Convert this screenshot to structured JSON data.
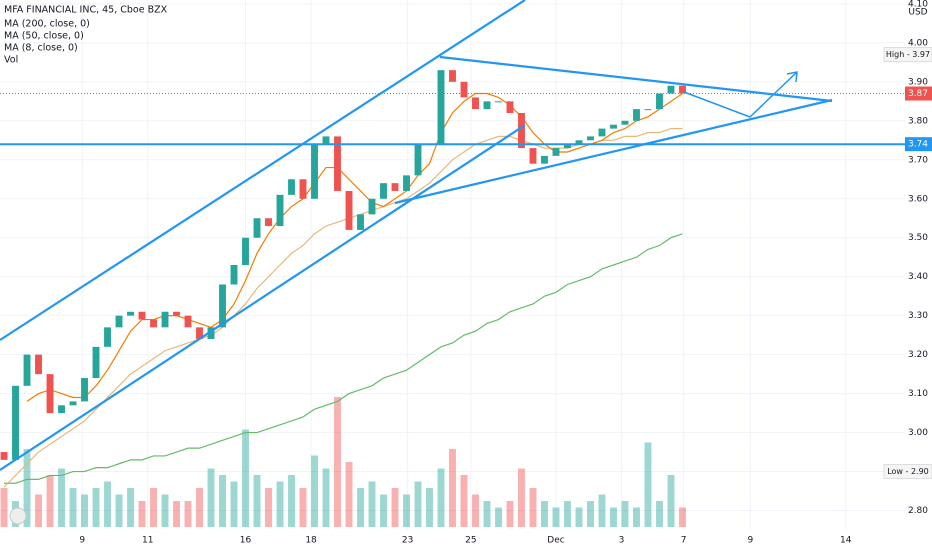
{
  "chart_data": {
    "type": "candlestick",
    "title": "MFA FINANCIAL INC, 45, Cboe BZX",
    "currency": "USD",
    "volume_label": "Vol",
    "up_color": "#26a69a",
    "down_color": "#ef5350",
    "grid": true,
    "x": [
      0,
      1,
      2,
      3,
      4,
      5,
      6,
      7,
      8,
      9,
      10,
      11,
      12,
      13,
      14,
      15,
      16,
      17,
      18,
      19,
      20,
      21,
      22,
      23,
      24,
      25,
      26,
      27,
      28,
      29,
      30,
      31,
      32,
      33,
      34,
      35,
      36,
      37,
      38,
      39,
      40,
      41,
      42,
      43,
      44,
      45,
      46,
      47,
      48,
      49,
      50,
      51,
      52,
      53,
      54,
      55,
      56,
      57,
      58,
      59
    ],
    "open": [
      2.95,
      2.93,
      3.12,
      3.2,
      3.15,
      3.05,
      3.07,
      3.08,
      3.14,
      3.22,
      3.27,
      3.3,
      3.31,
      3.29,
      3.27,
      3.31,
      3.3,
      3.27,
      3.24,
      3.27,
      3.38,
      3.43,
      3.5,
      3.55,
      3.53,
      3.61,
      3.65,
      3.6,
      3.74,
      3.76,
      3.62,
      3.52,
      3.56,
      3.6,
      3.64,
      3.62,
      3.66,
      3.74,
      3.74,
      3.93,
      3.9,
      3.86,
      3.83,
      3.85,
      3.85,
      3.82,
      3.73,
      3.69,
      3.71,
      3.73,
      3.74,
      3.75,
      3.76,
      3.78,
      3.79,
      3.8,
      3.83,
      3.83,
      3.87,
      3.89
    ],
    "high": {
      "value": 3.97,
      "label": "High - 3.97"
    },
    "low": {
      "value": 2.9,
      "label": "Low - 2.90"
    },
    "close": [
      2.93,
      3.12,
      3.2,
      3.15,
      3.05,
      3.07,
      3.08,
      3.14,
      3.22,
      3.27,
      3.3,
      3.31,
      3.29,
      3.27,
      3.31,
      3.3,
      3.27,
      3.24,
      3.27,
      3.38,
      3.43,
      3.5,
      3.55,
      3.53,
      3.61,
      3.65,
      3.6,
      3.74,
      3.76,
      3.62,
      3.52,
      3.56,
      3.6,
      3.64,
      3.62,
      3.66,
      3.74,
      3.74,
      3.93,
      3.9,
      3.86,
      3.83,
      3.85,
      3.85,
      3.82,
      3.73,
      3.69,
      3.71,
      3.73,
      3.74,
      3.75,
      3.76,
      3.78,
      3.79,
      3.8,
      3.83,
      3.83,
      3.87,
      3.89,
      3.87
    ],
    "volume": [
      30,
      20,
      60,
      25,
      40,
      45,
      30,
      25,
      30,
      35,
      25,
      30,
      20,
      30,
      25,
      20,
      20,
      30,
      45,
      40,
      35,
      75,
      40,
      30,
      35,
      40,
      30,
      55,
      45,
      100,
      50,
      30,
      35,
      25,
      30,
      25,
      35,
      30,
      45,
      60,
      40,
      25,
      20,
      15,
      20,
      45,
      30,
      20,
      15,
      20,
      15,
      20,
      25,
      15,
      20,
      15,
      65,
      20,
      40,
      15
    ],
    "series": [
      {
        "name": "MA (200, close, 0)",
        "color": "#66bb6a",
        "values": [
          2.87,
          2.87,
          2.88,
          2.88,
          2.89,
          2.89,
          2.9,
          2.9,
          2.91,
          2.91,
          2.92,
          2.93,
          2.93,
          2.94,
          2.94,
          2.95,
          2.96,
          2.96,
          2.97,
          2.98,
          2.99,
          3.0,
          3.0,
          3.01,
          3.02,
          3.03,
          3.04,
          3.06,
          3.07,
          3.08,
          3.1,
          3.11,
          3.12,
          3.14,
          3.15,
          3.16,
          3.18,
          3.2,
          3.22,
          3.23,
          3.25,
          3.26,
          3.28,
          3.29,
          3.31,
          3.32,
          3.33,
          3.35,
          3.36,
          3.38,
          3.39,
          3.4,
          3.42,
          3.43,
          3.44,
          3.45,
          3.47,
          3.48,
          3.5,
          3.51
        ]
      },
      {
        "name": "MA (50, close, 0)",
        "color": "#e8b77a",
        "values": [
          2.86,
          2.89,
          2.92,
          2.95,
          2.97,
          2.99,
          3.01,
          3.03,
          3.06,
          3.09,
          3.12,
          3.15,
          3.17,
          3.19,
          3.21,
          3.22,
          3.23,
          3.24,
          3.25,
          3.27,
          3.3,
          3.33,
          3.37,
          3.4,
          3.43,
          3.46,
          3.48,
          3.51,
          3.53,
          3.54,
          3.55,
          3.56,
          3.57,
          3.58,
          3.59,
          3.6,
          3.62,
          3.64,
          3.67,
          3.7,
          3.72,
          3.74,
          3.75,
          3.76,
          3.76,
          3.75,
          3.74,
          3.73,
          3.73,
          3.73,
          3.74,
          3.74,
          3.75,
          3.75,
          3.76,
          3.76,
          3.77,
          3.77,
          3.78,
          3.78
        ]
      },
      {
        "name": "MA (8, close, 0)",
        "color": "#f57c00",
        "values": [
          null,
          null,
          3.08,
          3.1,
          3.11,
          3.1,
          3.09,
          3.09,
          3.12,
          3.16,
          3.21,
          3.26,
          3.29,
          3.29,
          3.3,
          3.3,
          3.29,
          3.28,
          3.27,
          3.29,
          3.33,
          3.39,
          3.46,
          3.51,
          3.55,
          3.58,
          3.6,
          3.64,
          3.68,
          3.68,
          3.65,
          3.62,
          3.59,
          3.58,
          3.6,
          3.62,
          3.66,
          3.69,
          3.77,
          3.82,
          3.85,
          3.87,
          3.87,
          3.86,
          3.84,
          3.81,
          3.77,
          3.74,
          3.72,
          3.72,
          3.73,
          3.74,
          3.75,
          3.77,
          3.78,
          3.8,
          3.81,
          3.83,
          3.85,
          3.87
        ]
      }
    ],
    "ylim": [
      2.75,
      4.11
    ],
    "yticks": [
      {
        "value": 2.8,
        "label": "2.80"
      },
      {
        "value": 2.9,
        "label": "2.90"
      },
      {
        "value": 3.0,
        "label": "3.00"
      },
      {
        "value": 3.1,
        "label": "3.10"
      },
      {
        "value": 3.2,
        "label": "3.20"
      },
      {
        "value": 3.3,
        "label": "3.30"
      },
      {
        "value": 3.4,
        "label": "3.40"
      },
      {
        "value": 3.5,
        "label": "3.50"
      },
      {
        "value": 3.6,
        "label": "3.60"
      },
      {
        "value": 3.7,
        "label": "3.70"
      },
      {
        "value": 3.8,
        "label": "3.80"
      },
      {
        "value": 3.9,
        "label": "3.90"
      },
      {
        "value": 4.0,
        "label": "4.00"
      },
      {
        "value": 4.1,
        "label": "4.10"
      }
    ],
    "xlim": [
      -0.35,
      78.35
    ],
    "xticks": [
      {
        "value": 6.8,
        "label": "9"
      },
      {
        "value": 12.5,
        "label": "11"
      },
      {
        "value": 21.0,
        "label": "16"
      },
      {
        "value": 26.7,
        "label": "18"
      },
      {
        "value": 35.1,
        "label": "23"
      },
      {
        "value": 40.6,
        "label": "25"
      },
      {
        "value": 48.0,
        "label": "Dec"
      },
      {
        "value": 53.7,
        "label": "3"
      },
      {
        "value": 59.1,
        "label": "7"
      },
      {
        "value": 64.9,
        "label": "9"
      },
      {
        "value": 73.2,
        "label": "14"
      }
    ],
    "last": 3.87,
    "hline": 3.74
  }
}
